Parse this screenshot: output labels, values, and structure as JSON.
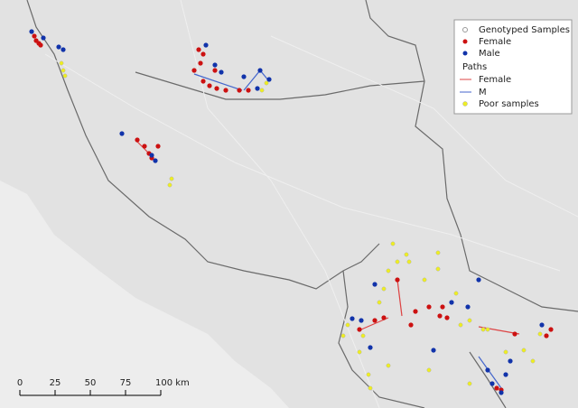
{
  "legend": {
    "title": "Genotyped Samples",
    "female": "Female",
    "male": "Male",
    "paths_title": "Paths",
    "path_female": "Female",
    "path_male": "M",
    "poor": "Poor samples"
  },
  "scale_bar": {
    "labels": [
      "0",
      "25",
      "50",
      "75",
      "100 km"
    ]
  }
}
